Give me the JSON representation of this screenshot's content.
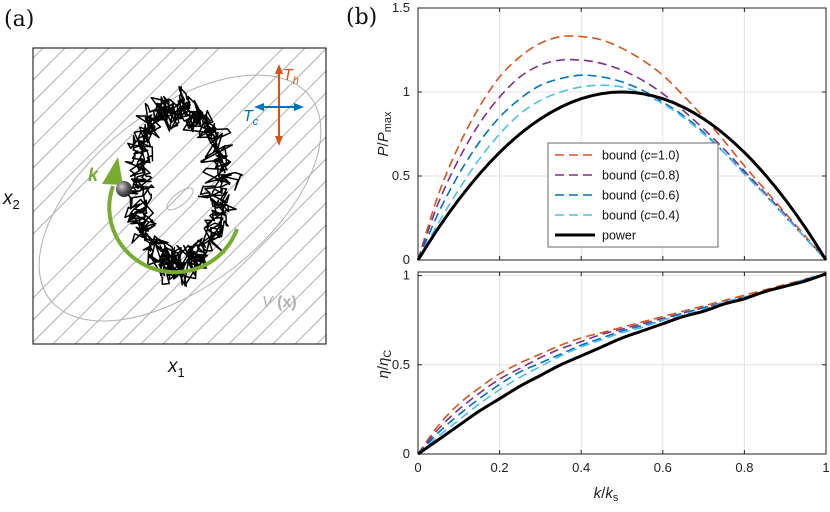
{
  "panel_a": {
    "label": "(a)",
    "x_label": "x",
    "x_sub": "1",
    "y_label": "x",
    "y_sub": "2",
    "potential_label": "V(x)",
    "hot_label": "T",
    "hot_sub": "h",
    "cold_label": "T",
    "cold_sub": "c",
    "rotation_label": "k",
    "colors": {
      "hot": "#d95319",
      "cold": "#0072bd",
      "rotation": "#77ac30",
      "contour": "#b0b0b0"
    }
  },
  "panel_b": {
    "label": "(b)"
  },
  "chart_data": [
    {
      "type": "line",
      "ylabel_main": "P",
      "ylabel_den": "P",
      "ylabel_den_sub": "max",
      "xlim": [
        0,
        1
      ],
      "ylim": [
        0,
        1.5
      ],
      "xticks": [
        0,
        0.2,
        0.4,
        0.6,
        0.8,
        1
      ],
      "yticks": [
        0,
        0.5,
        1,
        1.5
      ],
      "ytick_labels": [
        "0",
        "0.5",
        "1",
        "1.5"
      ],
      "grid": true,
      "legend_position": "center-right",
      "x": [
        0,
        0.05,
        0.1,
        0.15,
        0.2,
        0.25,
        0.3,
        0.35,
        0.4,
        0.45,
        0.5,
        0.55,
        0.6,
        0.65,
        0.7,
        0.75,
        0.8,
        0.85,
        0.9,
        0.95,
        1
      ],
      "series": [
        {
          "name": "bound (c=1.0)",
          "legend_pre": "bound (",
          "legend_var": "c",
          "legend_post": "=1.0)",
          "color": "#d95319",
          "dash": true,
          "values": [
            0,
            0.39,
            0.68,
            0.91,
            1.09,
            1.21,
            1.29,
            1.33,
            1.33,
            1.31,
            1.26,
            1.19,
            1.1,
            0.98,
            0.85,
            0.71,
            0.56,
            0.42,
            0.28,
            0.14,
            0
          ]
        },
        {
          "name": "bound (c=0.8)",
          "legend_pre": "bound (",
          "legend_var": "c",
          "legend_post": "=0.8)",
          "color": "#7e2f8e",
          "dash": true,
          "values": [
            0,
            0.34,
            0.6,
            0.81,
            0.97,
            1.09,
            1.16,
            1.19,
            1.19,
            1.17,
            1.13,
            1.07,
            0.99,
            0.89,
            0.78,
            0.66,
            0.53,
            0.4,
            0.27,
            0.13,
            0
          ]
        },
        {
          "name": "bound (c=0.6)",
          "legend_pre": "bound (",
          "legend_var": "c",
          "legend_post": "=0.6)",
          "color": "#0072bd",
          "dash": true,
          "values": [
            0,
            0.28,
            0.51,
            0.7,
            0.85,
            0.96,
            1.04,
            1.08,
            1.1,
            1.09,
            1.06,
            1.01,
            0.94,
            0.86,
            0.76,
            0.64,
            0.52,
            0.39,
            0.26,
            0.13,
            0
          ]
        },
        {
          "name": "bound (c=0.4)",
          "legend_pre": "bound (",
          "legend_var": "c",
          "legend_post": "=0.4)",
          "color": "#4dbeee",
          "dash": true,
          "values": [
            0,
            0.22,
            0.42,
            0.6,
            0.75,
            0.87,
            0.95,
            1.0,
            1.03,
            1.04,
            1.03,
            0.99,
            0.93,
            0.85,
            0.75,
            0.64,
            0.51,
            0.39,
            0.26,
            0.13,
            0
          ]
        },
        {
          "name": "power",
          "legend_pre": "power",
          "legend_var": "",
          "legend_post": "",
          "color": "#000000",
          "dash": false,
          "values": [
            0,
            0.19,
            0.36,
            0.51,
            0.64,
            0.75,
            0.84,
            0.91,
            0.96,
            0.99,
            1.0,
            0.99,
            0.96,
            0.91,
            0.84,
            0.75,
            0.64,
            0.51,
            0.36,
            0.19,
            0
          ]
        }
      ]
    },
    {
      "type": "line",
      "ylabel_main": "η",
      "ylabel_den": "η",
      "ylabel_den_sub": "C",
      "xlabel_main": "k",
      "xlabel_den": "k",
      "xlabel_den_sub": "s",
      "xlim": [
        0,
        1
      ],
      "ylim": [
        0,
        1.02
      ],
      "xticks": [
        0,
        0.2,
        0.4,
        0.6,
        0.8,
        1
      ],
      "xtick_labels": [
        "0",
        "0.2",
        "0.4",
        "0.6",
        "0.8",
        "1"
      ],
      "yticks": [
        0,
        0.5,
        1
      ],
      "ytick_labels": [
        "0",
        "0.5",
        "1"
      ],
      "grid": true,
      "x": [
        0,
        0.05,
        0.1,
        0.15,
        0.2,
        0.25,
        0.3,
        0.35,
        0.4,
        0.45,
        0.5,
        0.55,
        0.6,
        0.65,
        0.7,
        0.75,
        0.8,
        0.85,
        0.9,
        0.95,
        1
      ],
      "series": [
        {
          "name": "bound (c=1.0)",
          "color": "#d95319",
          "dash": true,
          "values": [
            0,
            0.16,
            0.28,
            0.37,
            0.45,
            0.51,
            0.56,
            0.61,
            0.65,
            0.68,
            0.71,
            0.74,
            0.77,
            0.8,
            0.83,
            0.86,
            0.89,
            0.92,
            0.95,
            0.98,
            1.01
          ]
        },
        {
          "name": "bound (c=0.8)",
          "color": "#7e2f8e",
          "dash": true,
          "values": [
            0,
            0.14,
            0.25,
            0.34,
            0.42,
            0.48,
            0.54,
            0.59,
            0.63,
            0.67,
            0.7,
            0.73,
            0.76,
            0.79,
            0.82,
            0.85,
            0.88,
            0.91,
            0.94,
            0.98,
            1.01
          ]
        },
        {
          "name": "bound (c=0.6)",
          "color": "#0072bd",
          "dash": true,
          "values": [
            0,
            0.12,
            0.22,
            0.31,
            0.39,
            0.46,
            0.51,
            0.56,
            0.61,
            0.65,
            0.69,
            0.72,
            0.75,
            0.79,
            0.82,
            0.85,
            0.88,
            0.91,
            0.94,
            0.98,
            1.01
          ]
        },
        {
          "name": "bound (c=0.4)",
          "color": "#4dbeee",
          "dash": true,
          "values": [
            0,
            0.1,
            0.19,
            0.28,
            0.36,
            0.43,
            0.49,
            0.55,
            0.6,
            0.64,
            0.68,
            0.71,
            0.75,
            0.78,
            0.81,
            0.85,
            0.88,
            0.91,
            0.94,
            0.98,
            1.01
          ]
        },
        {
          "name": "power",
          "color": "#000000",
          "dash": false,
          "values": [
            0,
            0.08,
            0.16,
            0.24,
            0.31,
            0.38,
            0.44,
            0.5,
            0.55,
            0.6,
            0.65,
            0.69,
            0.73,
            0.77,
            0.8,
            0.84,
            0.87,
            0.91,
            0.94,
            0.97,
            1.01
          ]
        }
      ]
    }
  ]
}
